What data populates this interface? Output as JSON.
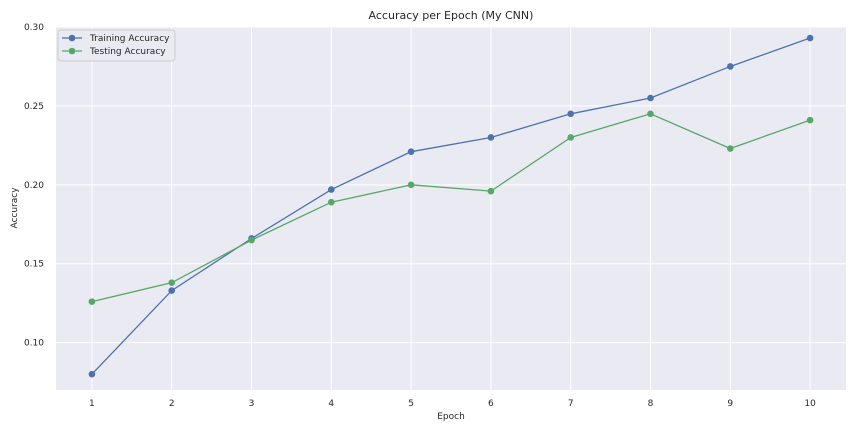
{
  "chart_data": {
    "type": "line",
    "title": "Accuracy per Epoch (My CNN)",
    "xlabel": "Epoch",
    "ylabel": "Accuracy",
    "x": [
      1,
      2,
      3,
      4,
      5,
      6,
      7,
      8,
      9,
      10
    ],
    "xlim": [
      0.55,
      10.45
    ],
    "ylim": [
      0.07,
      0.3
    ],
    "yticks": [
      0.1,
      0.15,
      0.2,
      0.25,
      0.3
    ],
    "ytick_labels": [
      "0.10",
      "0.15",
      "0.20",
      "0.25",
      "0.30"
    ],
    "xtick_labels": [
      "1",
      "2",
      "3",
      "4",
      "5",
      "6",
      "7",
      "8",
      "9",
      "10"
    ],
    "grid": true,
    "legend_position": "top-left",
    "series": [
      {
        "name": "Training Accuracy",
        "color": "#4c72b0",
        "values": [
          0.08,
          0.133,
          0.166,
          0.197,
          0.221,
          0.23,
          0.245,
          0.255,
          0.275,
          0.293
        ]
      },
      {
        "name": "Testing Accuracy",
        "color": "#55a868",
        "values": [
          0.126,
          0.138,
          0.165,
          0.189,
          0.2,
          0.196,
          0.23,
          0.245,
          0.223,
          0.241
        ]
      }
    ]
  }
}
